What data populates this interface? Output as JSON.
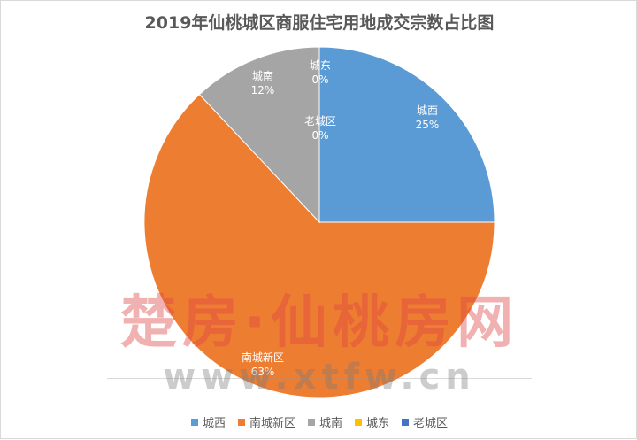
{
  "chart_data": {
    "type": "pie",
    "title": "2019年仙桃城区商服住宅用地成交宗数占比图",
    "categories": [
      "城西",
      "南城新区",
      "城南",
      "城东",
      "老城区"
    ],
    "values": [
      25,
      63,
      12,
      0,
      0
    ],
    "value_labels": [
      "25%",
      "63%",
      "12%",
      "0%",
      "0%"
    ],
    "colors": [
      "#5b9bd5",
      "#ed7d31",
      "#a5a5a5",
      "#ffc000",
      "#4472c4"
    ],
    "legend": "bottom"
  },
  "watermark": {
    "brand": "楚房·仙桃房网",
    "url": "www.xtfw.cn"
  }
}
